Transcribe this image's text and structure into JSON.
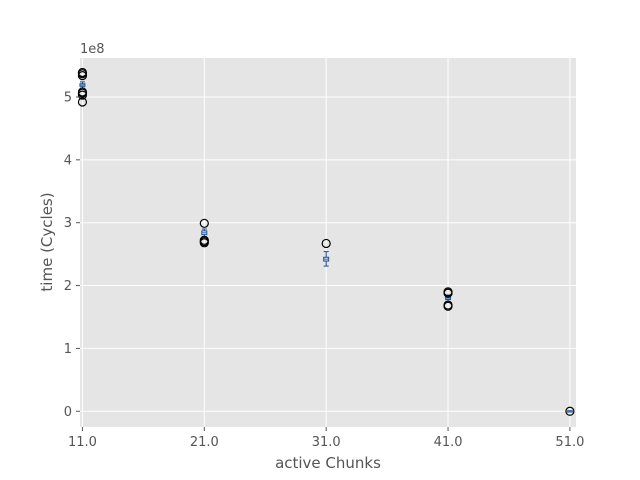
{
  "chart_data": {
    "type": "boxplot",
    "title": "",
    "xlabel": "active Chunks",
    "ylabel": "time (Cycles)",
    "y_offset_label": "1e8",
    "xlim": [
      10.8,
      51.5
    ],
    "ylim": [
      -0.25,
      5.62
    ],
    "x_ticks": [
      11.0,
      21.0,
      31.0,
      41.0,
      51.0
    ],
    "x_tick_labels": [
      "11.0",
      "21.0",
      "31.0",
      "41.0",
      "51.0"
    ],
    "y_ticks": [
      0,
      1,
      2,
      3,
      4,
      5
    ],
    "y_tick_labels": [
      "0",
      "1",
      "2",
      "3",
      "4",
      "5"
    ],
    "grid": true,
    "boxes": [
      {
        "x": 11.0,
        "whisker_low": 5.14,
        "q1": 5.17,
        "median": 5.19,
        "q3": 5.21,
        "whisker_high": 5.24,
        "fliers": [
          4.92,
          5.03,
          5.06,
          5.08,
          5.34,
          5.37,
          5.39
        ]
      },
      {
        "x": 21.0,
        "whisker_low": 2.78,
        "q1": 2.81,
        "median": 2.84,
        "q3": 2.87,
        "whisker_high": 2.9,
        "fliers": [
          2.68,
          2.7,
          2.72,
          2.99
        ]
      },
      {
        "x": 31.0,
        "whisker_low": 2.31,
        "q1": 2.39,
        "median": 2.42,
        "q3": 2.45,
        "whisker_high": 2.54,
        "fliers": [
          2.67
        ]
      },
      {
        "x": 41.0,
        "whisker_low": 1.75,
        "q1": 1.78,
        "median": 1.8,
        "q3": 1.82,
        "whisker_high": 1.85,
        "fliers": [
          1.67,
          1.69,
          1.88,
          1.9
        ]
      },
      {
        "x": 51.0,
        "whisker_low": -0.01,
        "q1": -0.005,
        "median": 0.0,
        "q3": 0.005,
        "whisker_high": 0.01,
        "fliers": [
          0.0
        ]
      }
    ],
    "colors": {
      "plot_background": "#e5e5e5",
      "grid": "#ffffff",
      "box": "#1f4e8c",
      "median": "#3a7dc9",
      "flier": "#000000",
      "text": "#555555"
    }
  }
}
